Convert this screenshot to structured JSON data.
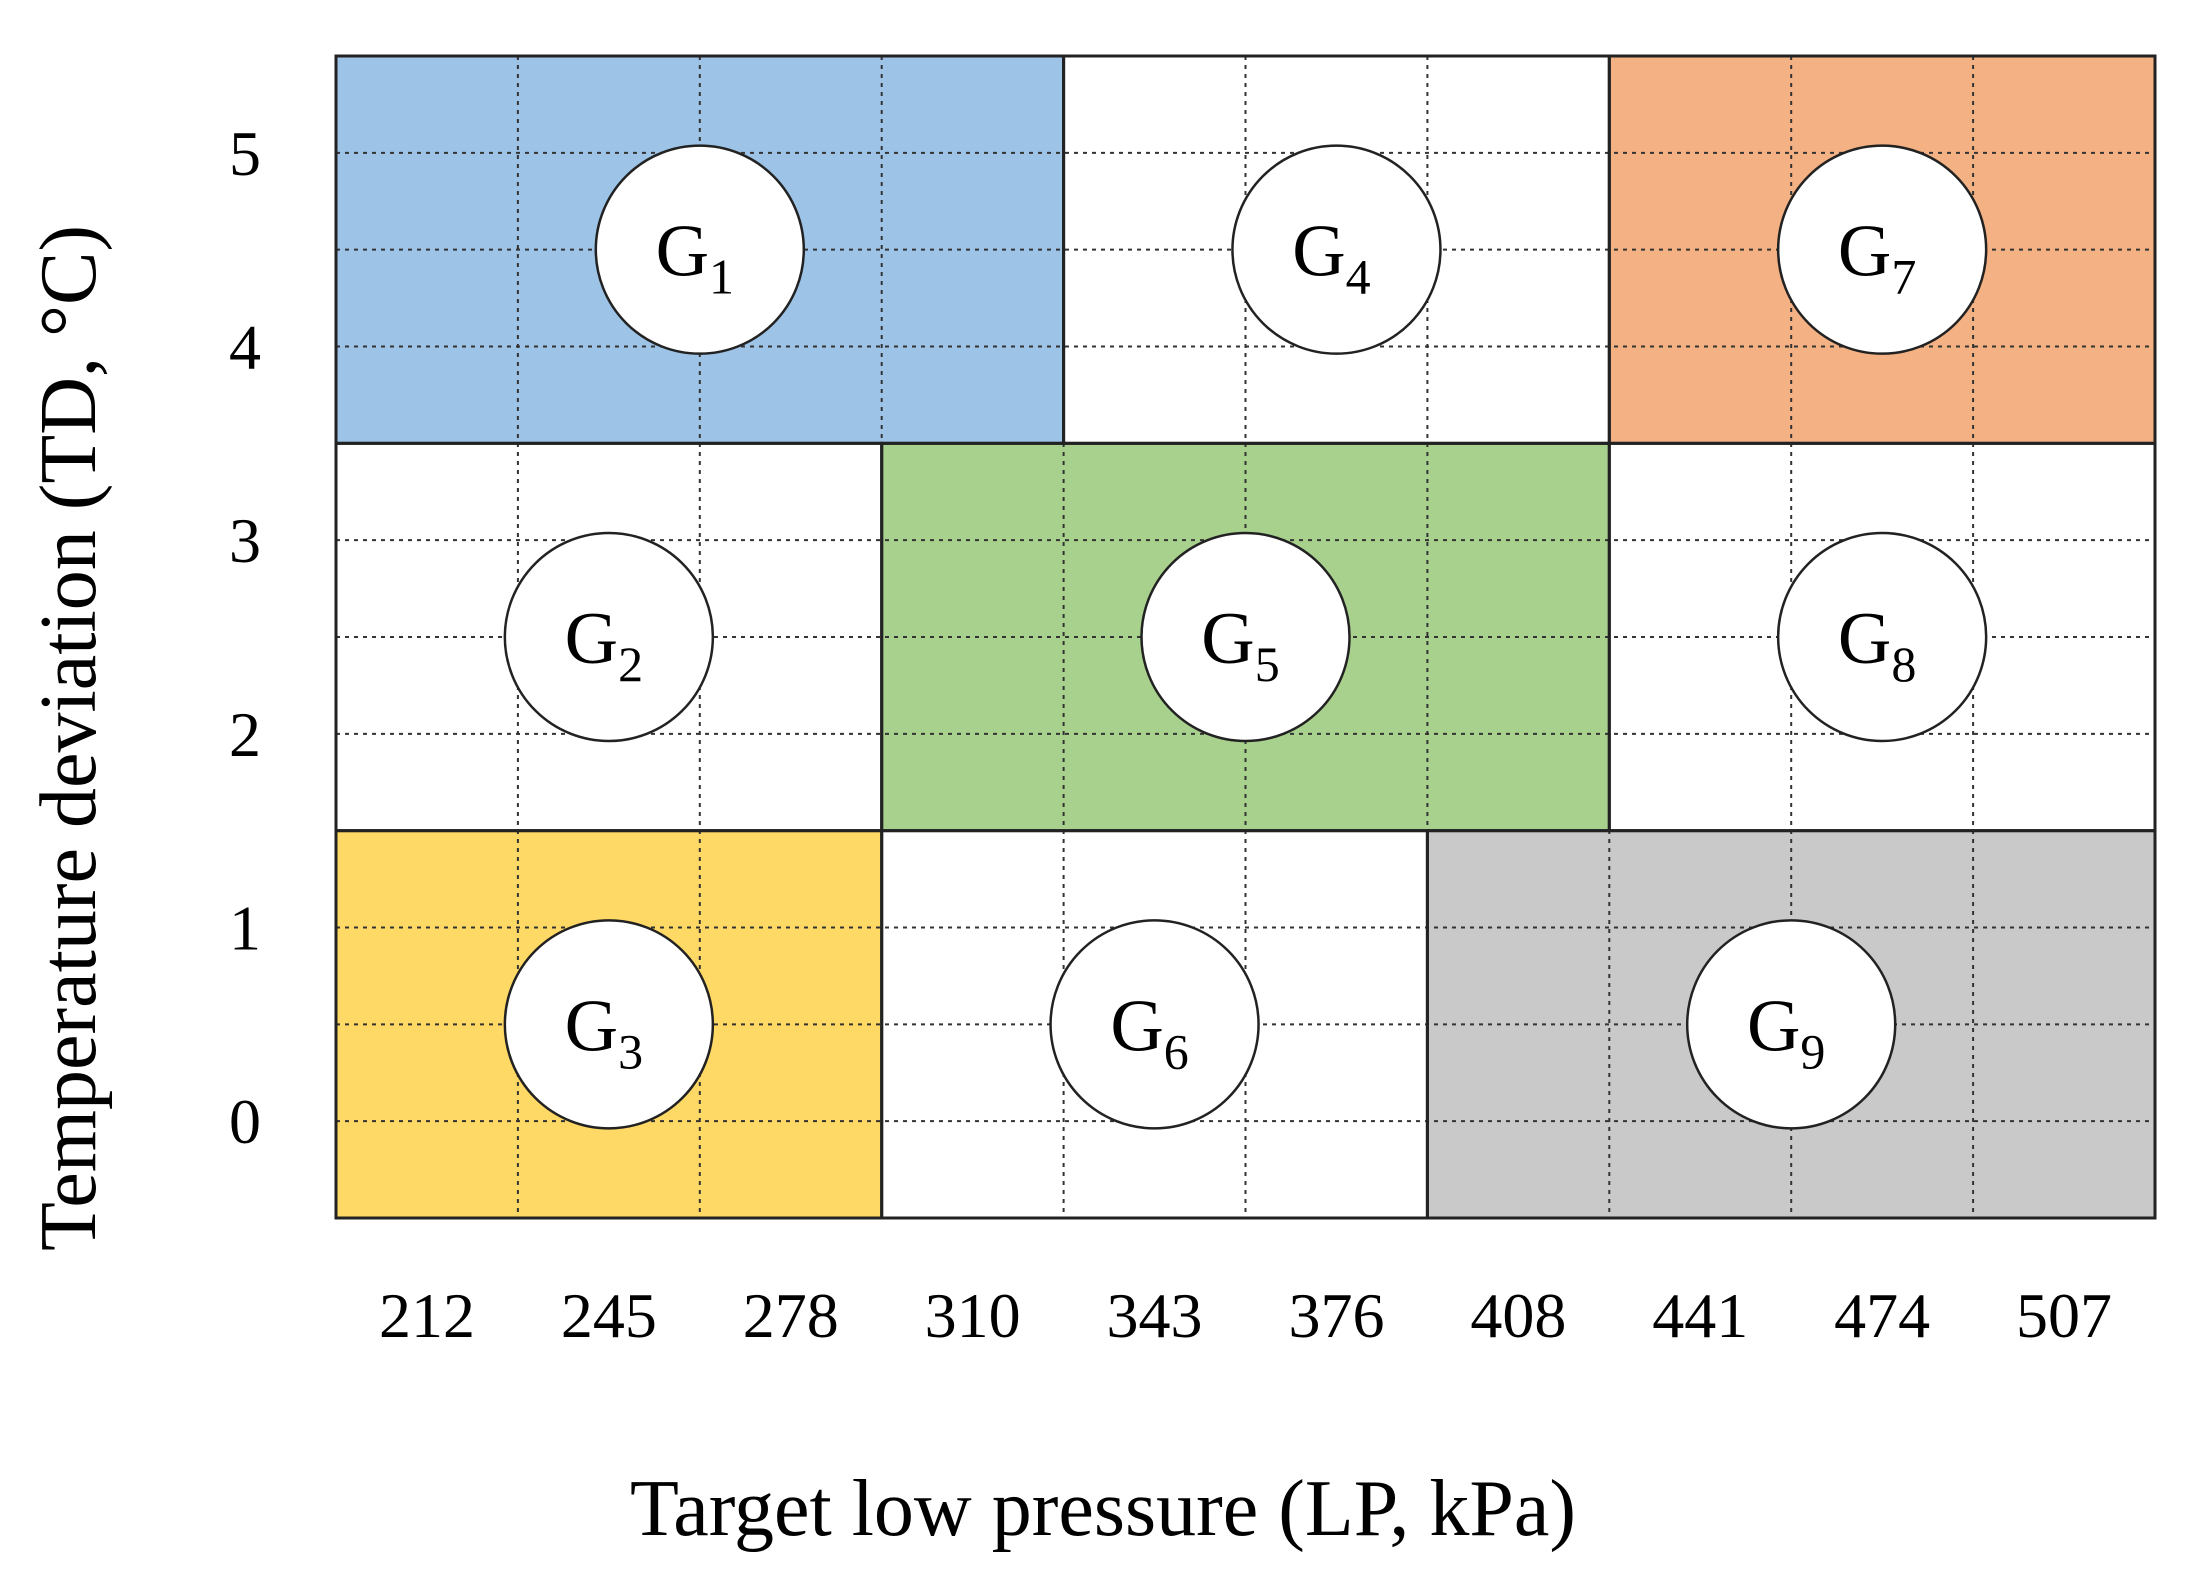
{
  "chart_data": {
    "type": "diagram",
    "xlabel": "Target low pressure (LP, kPa)",
    "ylabel": "Temperature deviation (TD, °C)",
    "x_ticks": [
      "212",
      "245",
      "278",
      "310",
      "343",
      "376",
      "408",
      "441",
      "474",
      "507"
    ],
    "y_ticks": [
      "0",
      "1",
      "2",
      "3",
      "4",
      "5"
    ],
    "groups": [
      {
        "id": "G1",
        "letter": "G",
        "index": "1",
        "x_from": 0,
        "x_to": 3,
        "y_from": 4,
        "y_to": 5,
        "fill": "#9dc3e6"
      },
      {
        "id": "G2",
        "letter": "G",
        "index": "2",
        "x_from": 0,
        "x_to": 2,
        "y_from": 2,
        "y_to": 3,
        "fill": "#ffffff"
      },
      {
        "id": "G3",
        "letter": "G",
        "index": "3",
        "x_from": 0,
        "x_to": 2,
        "y_from": 0,
        "y_to": 1,
        "fill": "#ffd966"
      },
      {
        "id": "G4",
        "letter": "G",
        "index": "4",
        "x_from": 4,
        "x_to": 6,
        "y_from": 4,
        "y_to": 5,
        "fill": "#ffffff"
      },
      {
        "id": "G5",
        "letter": "G",
        "index": "5",
        "x_from": 3,
        "x_to": 6,
        "y_from": 2,
        "y_to": 3,
        "fill": "#a9d18e"
      },
      {
        "id": "G6",
        "letter": "G",
        "index": "6",
        "x_from": 3,
        "x_to": 5,
        "y_from": 0,
        "y_to": 1,
        "fill": "#ffffff"
      },
      {
        "id": "G7",
        "letter": "G",
        "index": "7",
        "x_from": 7,
        "x_to": 9,
        "y_from": 4,
        "y_to": 5,
        "fill": "#f4b183"
      },
      {
        "id": "G8",
        "letter": "G",
        "index": "8",
        "x_from": 7,
        "x_to": 9,
        "y_from": 2,
        "y_to": 3,
        "fill": "#ffffff"
      },
      {
        "id": "G9",
        "letter": "G",
        "index": "9",
        "x_from": 6,
        "x_to": 9,
        "y_from": 0,
        "y_to": 1,
        "fill": "#c9c9c9"
      }
    ],
    "grid": true
  }
}
